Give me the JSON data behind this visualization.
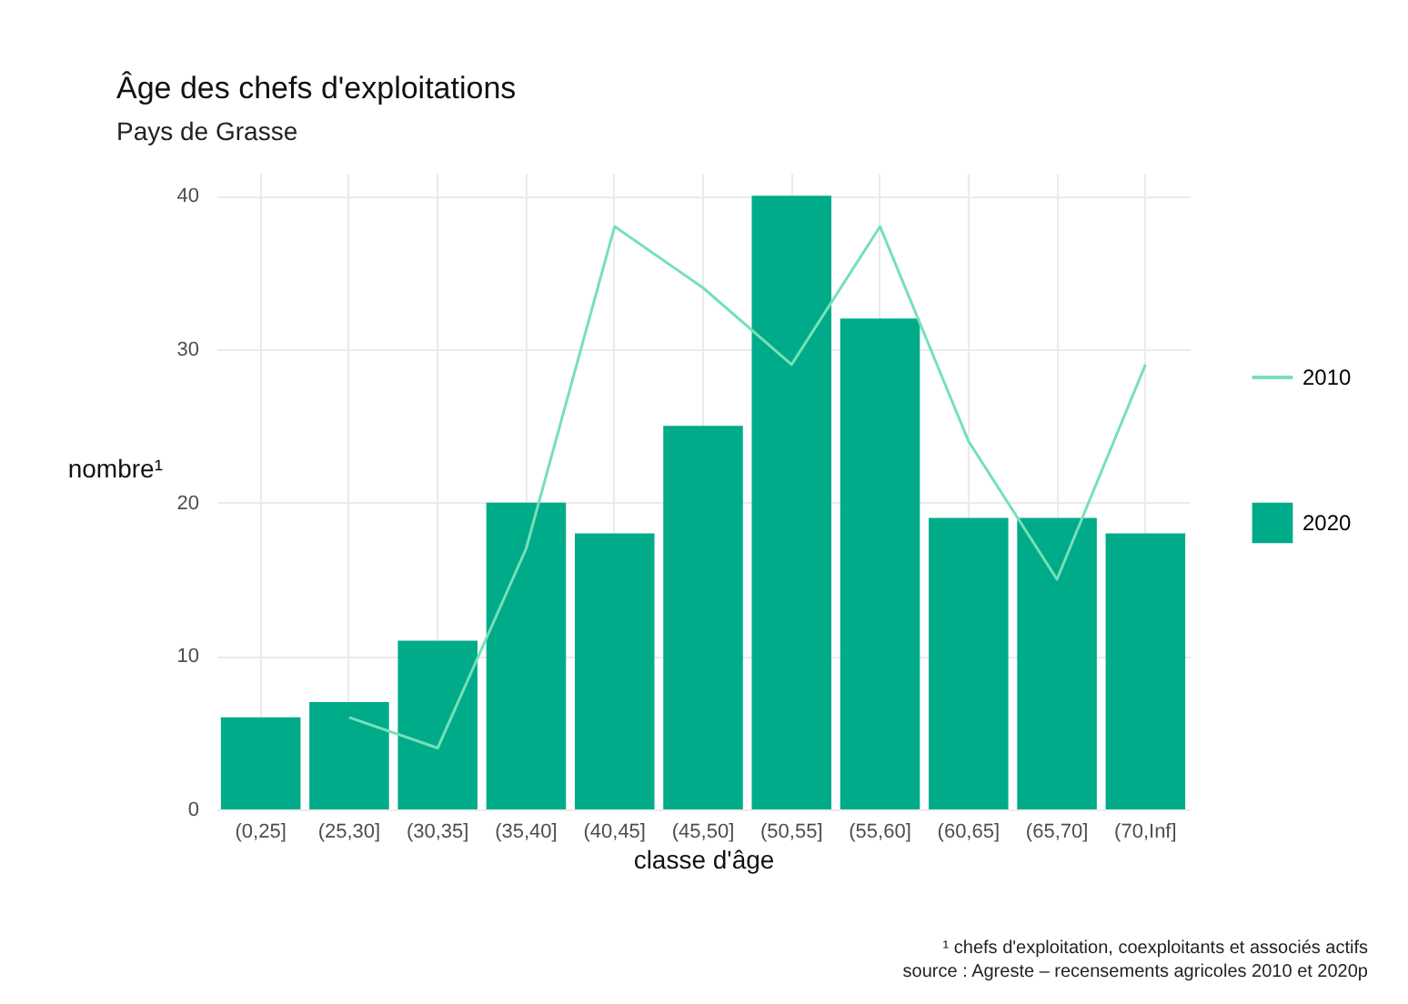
{
  "chart_data": {
    "type": "bar",
    "title": "Âge des chefs d'exploitations",
    "subtitle": "Pays de Grasse",
    "xlabel": "classe d'âge",
    "ylabel": "nombre¹",
    "categories": [
      "(0,25]",
      "(25,30]",
      "(30,35]",
      "(35,40]",
      "(40,45]",
      "(45,50]",
      "(50,55]",
      "(55,60]",
      "(60,65]",
      "(65,70]",
      "(70,Inf]"
    ],
    "series": [
      {
        "name": "2010",
        "type": "line",
        "color": "#76e0b8",
        "values": [
          null,
          6,
          4,
          17,
          38,
          34,
          29,
          38,
          24,
          15,
          29
        ]
      },
      {
        "name": "2020",
        "color": "#00ab8a",
        "values": [
          6,
          7,
          11,
          20,
          18,
          25,
          40,
          32,
          19,
          19,
          18
        ]
      }
    ],
    "ylim": [
      0,
      41.5
    ],
    "yticks": [
      0,
      10,
      20,
      30,
      40
    ],
    "grid": true,
    "legend": "right",
    "annotations": [
      "¹ chefs d'exploitation, coexploitants et associés actifs",
      "source : Agreste – recensements agricoles 2010 et 2020p"
    ]
  }
}
